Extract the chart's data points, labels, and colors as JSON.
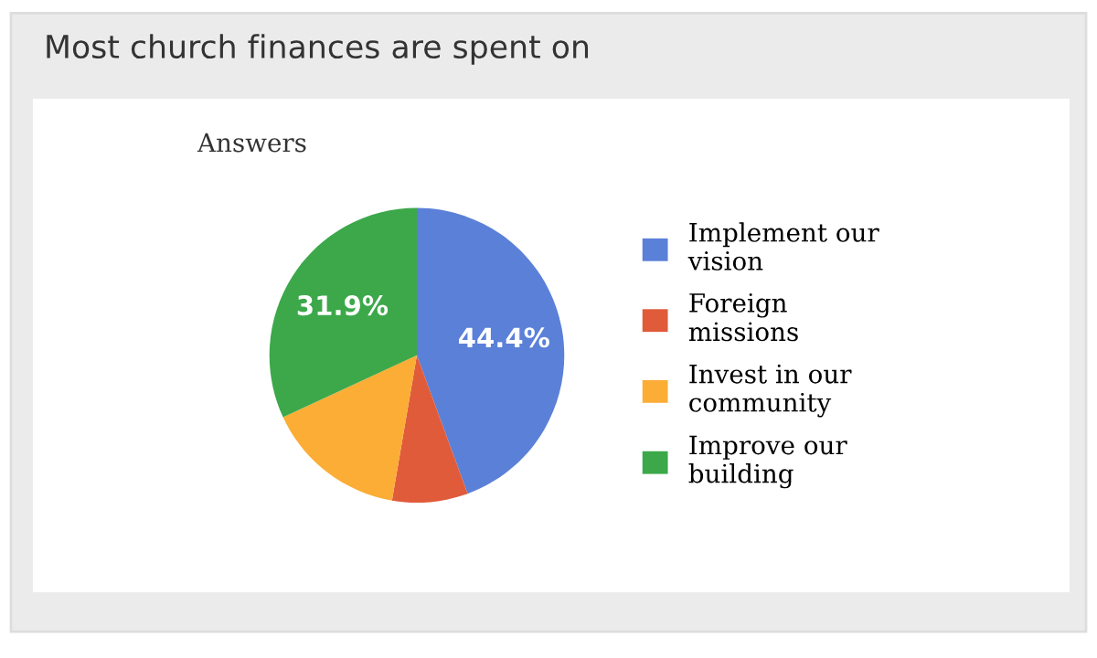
{
  "chart_data": {
    "type": "pie",
    "title": "Most church finances are spent on",
    "subtitle": "Answers",
    "categories": [
      "Implement our vision",
      "Foreign missions",
      "Invest in our community",
      "Improve our building"
    ],
    "values": [
      44.4,
      8.3,
      15.4,
      31.9
    ],
    "colors": [
      "#5b80d8",
      "#e05b3a",
      "#fbad35",
      "#3ca84a"
    ],
    "value_labels": [
      "44.4%",
      null,
      null,
      "31.9%"
    ],
    "legend": "right"
  }
}
